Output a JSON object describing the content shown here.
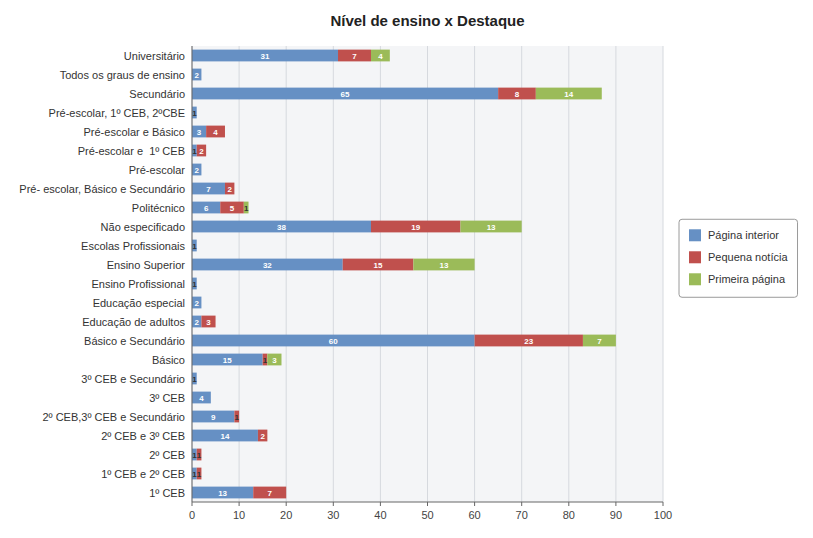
{
  "chart_data": {
    "type": "bar",
    "title": "Nível de ensino x Destaque",
    "orientation": "horizontal",
    "stacked": true,
    "data_labels": true,
    "grid": true,
    "legend": "right",
    "categories": [
      "Universitário",
      "Todos os graus de ensino",
      "Secundário",
      "Pré-escolar, 1º CEB, 2ºCBE",
      "Pré-escolar e Básico",
      "Pré-escolar e  1º CEB",
      "Pré-escolar",
      "Pré- escolar, Básico e Secundário",
      "Politécnico",
      "Não especificado",
      "Escolas Profissionais",
      "Ensino Superior",
      "Ensino Profissional",
      "Educação especial",
      "Educação de adultos",
      "Básico e Secundário",
      "Básico",
      "3º CEB e Secundário",
      "3º CEB",
      "2º CEB,3º CEB e Secundário",
      "2º CEB e 3º CEB",
      "2º CEB",
      "1º CEB e 2º CEB",
      "1º CEB"
    ],
    "series": [
      {
        "name": "Página interior",
        "color": "#6690C4",
        "values": [
          31,
          2,
          65,
          1,
          3,
          1,
          2,
          7,
          6,
          38,
          1,
          32,
          1,
          2,
          2,
          60,
          15,
          1,
          4,
          9,
          14,
          1,
          1,
          13
        ]
      },
      {
        "name": "Pequena notícia",
        "color": "#C0504D",
        "values": [
          7,
          0,
          8,
          0,
          4,
          2,
          0,
          2,
          5,
          19,
          0,
          15,
          0,
          0,
          3,
          23,
          1,
          0,
          0,
          1,
          2,
          1,
          1,
          7
        ]
      },
      {
        "name": "Primeira página",
        "color": "#9BBB59",
        "values": [
          4,
          0,
          14,
          0,
          0,
          0,
          0,
          0,
          1,
          13,
          0,
          13,
          0,
          0,
          0,
          7,
          3,
          0,
          0,
          0,
          0,
          0,
          0,
          0
        ]
      }
    ],
    "xlim": [
      0,
      100
    ],
    "xticks": [
      0,
      10,
      20,
      30,
      40,
      50,
      60,
      70,
      80,
      90,
      100
    ]
  }
}
